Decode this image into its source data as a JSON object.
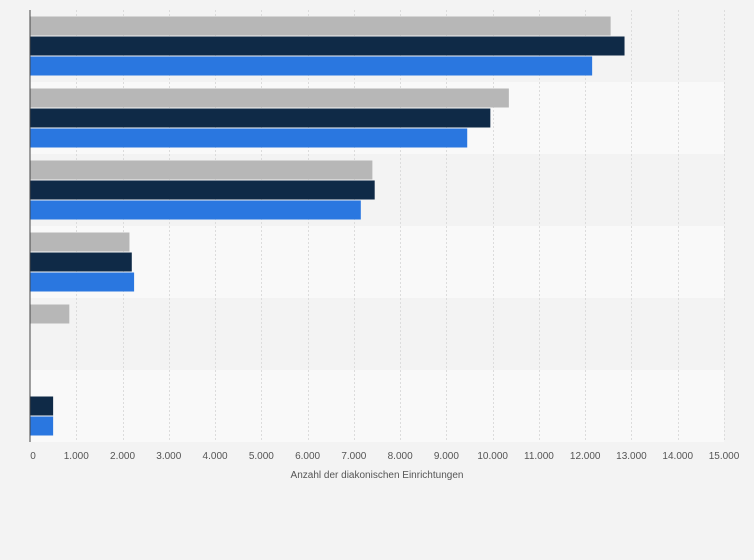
{
  "chart_data": {
    "type": "bar",
    "orientation": "horizontal",
    "categories": [
      "",
      "",
      "",
      "",
      "",
      ""
    ],
    "series": [
      {
        "color": "#b7b7b7",
        "values": [
          12550,
          10350,
          7400,
          2150,
          850,
          null
        ]
      },
      {
        "color": "#0f2a47",
        "values": [
          12850,
          9950,
          7450,
          2200,
          null,
          500
        ]
      },
      {
        "color": "#2a77e0",
        "values": [
          12150,
          9450,
          7150,
          2250,
          null,
          500
        ]
      }
    ],
    "xlabel": "Anzahl der diakonischen Einrichtungen",
    "xlim": [
      0,
      15000
    ],
    "ticks": [
      "0",
      "1.000",
      "2.000",
      "3.000",
      "4.000",
      "5.000",
      "6.000",
      "7.000",
      "8.000",
      "9.000",
      "10.000",
      "11.000",
      "12.000",
      "13.000",
      "14.000",
      "15.000"
    ],
    "tick_values": [
      0,
      1000,
      2000,
      3000,
      4000,
      5000,
      6000,
      7000,
      8000,
      9000,
      10000,
      11000,
      12000,
      13000,
      14000,
      15000
    ],
    "grid": true,
    "legend": false
  }
}
